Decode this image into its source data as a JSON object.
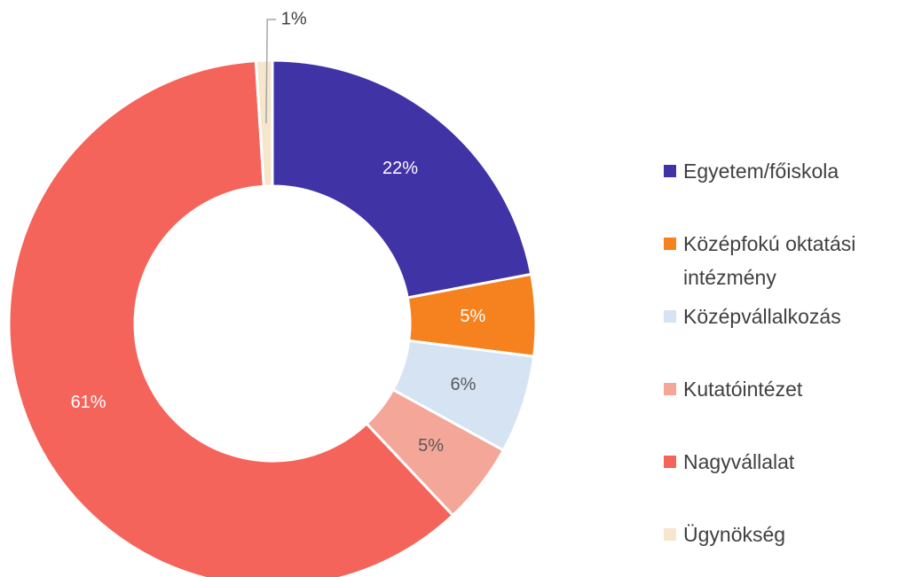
{
  "chart_data": {
    "type": "donut",
    "categories": [
      "Egyetem/főiskola",
      "Középfokú oktatási intézmény",
      "Középvállalkozás",
      "Kutatóintézet",
      "Nagyvállalat",
      "Ügynökség"
    ],
    "values": [
      22,
      5,
      6,
      5,
      61,
      1
    ],
    "value_labels": [
      "22%",
      "5%",
      "6%",
      "5%",
      "61%",
      "1%"
    ],
    "colors": [
      "#4033a6",
      "#f5821f",
      "#d5e3f3",
      "#f4a698",
      "#f4645a",
      "#f5e6cc"
    ],
    "legend": "right"
  }
}
